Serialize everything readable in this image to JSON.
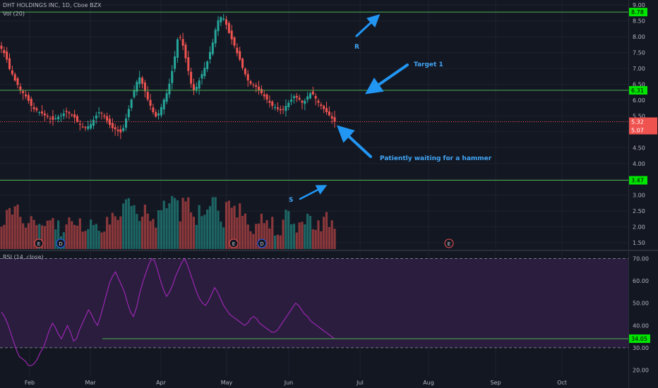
{
  "header": {
    "symbol_line": "DHT HOLDINGS INC, 1D, Cboe BZX",
    "volume_label": "Vol (20)",
    "rsi_label": "RSI (14, close)"
  },
  "colors": {
    "background": "#131722",
    "up": "#26a69a",
    "down": "#ef5350",
    "hline": "#4caf50",
    "level_tag": "#00e600",
    "arrow": "#2196f3",
    "annotation_text": "#42a5f5",
    "rsi_line": "#9c27b0",
    "rsi_band": "#2a1d3e",
    "axis_text": "#b2b5be",
    "grid": "#1e222d",
    "price_line": "#ef5350"
  },
  "chart_data": [
    {
      "type": "candlestick",
      "title": "DHT HOLDINGS INC, 1D, Cboe BZX",
      "ylim": [
        1.3,
        9.05
      ],
      "y_ticks": [
        9.0,
        8.5,
        8.0,
        7.5,
        7.0,
        6.5,
        6.0,
        5.5,
        5.0,
        4.5,
        4.0,
        3.5,
        3.0,
        2.5,
        2.0,
        1.5
      ],
      "x_ticks": [
        "Feb",
        "Mar",
        "Apr",
        "May",
        "Jun",
        "Jul",
        "Aug",
        "Sep",
        "Oct"
      ],
      "grid": true,
      "horizontal_levels": [
        {
          "label": "8.78",
          "value": 8.78
        },
        {
          "label": "6.31",
          "value": 6.31
        },
        {
          "label": "3.47",
          "value": 3.47
        }
      ],
      "price_tags": [
        "5.32",
        "5.07"
      ],
      "close_series": [
        7.62,
        7.48,
        7.28,
        6.98,
        6.82,
        6.62,
        6.48,
        6.32,
        6.22,
        6.12,
        5.98,
        5.82,
        5.72,
        5.68,
        5.62,
        5.58,
        5.52,
        5.48,
        5.42,
        5.38,
        5.42,
        5.48,
        5.52,
        5.58,
        5.62,
        5.58,
        5.52,
        5.45,
        5.32,
        5.22,
        5.15,
        5.12,
        5.18,
        5.25,
        5.38,
        5.52,
        5.62,
        5.58,
        5.48,
        5.35,
        5.22,
        5.12,
        5.08,
        5.02,
        4.98,
        5.12,
        5.42,
        5.72,
        6.02,
        6.32,
        6.58,
        6.72,
        6.52,
        6.28,
        6.02,
        5.82,
        5.62,
        5.48,
        5.58,
        5.78,
        6.02,
        6.22,
        6.52,
        6.92,
        7.38,
        7.92,
        7.98,
        7.72,
        7.32,
        6.92,
        6.52,
        6.32,
        6.42,
        6.62,
        6.82,
        7.02,
        7.22,
        7.52,
        7.82,
        8.22,
        8.52,
        8.62,
        8.58,
        8.38,
        8.12,
        7.92,
        7.72,
        7.48,
        7.28,
        7.02,
        6.82,
        6.62,
        6.52,
        6.48,
        6.42,
        6.32,
        6.22,
        6.12,
        6.02,
        5.92,
        5.82,
        5.78,
        5.72,
        5.68,
        5.72,
        5.82,
        5.92,
        6.02,
        6.12,
        6.08,
        6.02,
        5.92,
        5.98,
        6.12,
        6.22,
        6.18,
        6.05,
        5.92,
        5.82,
        5.72,
        5.62,
        5.52,
        5.42,
        5.32
      ],
      "volume_scale": "relative",
      "earnings_markers": [
        "E",
        "D",
        "E",
        "D",
        "E"
      ]
    },
    {
      "type": "line",
      "title": "RSI (14, close)",
      "ylim": [
        17,
        73
      ],
      "y_ticks": [
        70.0,
        60.0,
        50.0,
        40.0,
        30.0,
        20.0
      ],
      "band": [
        30,
        70
      ],
      "current_value_label": "34.05",
      "support_level": 34.05,
      "values": [
        46,
        44,
        41,
        37,
        33,
        29,
        26,
        25,
        24,
        22,
        22,
        23,
        25,
        28,
        30,
        34,
        38,
        41,
        39,
        36,
        34,
        37,
        40,
        37,
        33,
        34,
        38,
        41,
        44,
        47,
        45,
        42,
        40,
        44,
        49,
        54,
        59,
        62,
        64,
        61,
        58,
        55,
        50,
        46,
        44,
        48,
        54,
        59,
        63,
        67,
        70,
        69,
        65,
        60,
        56,
        53,
        55,
        58,
        62,
        65,
        68,
        70,
        67,
        63,
        59,
        55,
        52,
        50,
        49,
        51,
        54,
        57,
        55,
        52,
        49,
        47,
        45,
        44,
        43,
        42,
        41,
        40,
        41,
        43,
        44,
        43,
        41,
        40,
        39,
        38,
        37,
        37,
        38,
        40,
        42,
        44,
        46,
        48,
        50,
        49,
        47,
        45,
        44,
        42,
        41,
        40,
        39,
        38,
        37,
        36,
        35,
        34
      ]
    }
  ],
  "annotations": {
    "resistance": "R",
    "target": "Target 1",
    "waiting": "Patiently waiting for a hammer",
    "support": "S"
  }
}
